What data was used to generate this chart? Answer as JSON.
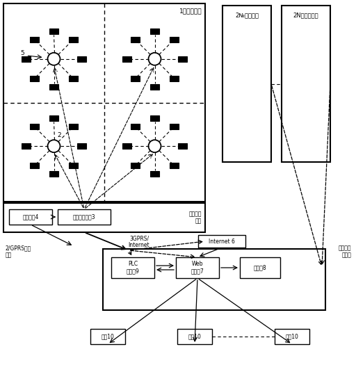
{
  "pond_label": "1号养殖池塘",
  "pond2_label": "2№养殖池塘",
  "pond3_label": "2N号养殖池塘",
  "field_ctrl_label": "现场控制\n中心",
  "field_ctrl_node": "检测控制节点3",
  "field_alert": "现场报警4",
  "gprs_label": "2/GPRS网络\n基站",
  "net_label": "3GPRS/\nInternet",
  "internet_label": "Internet 6",
  "remote_label": "远程控制\n中心室",
  "plc_label": "PLC\n监控犯9",
  "web_label": "Web\n服务器7",
  "db_label": "数据库8",
  "user1_label": "用戗10",
  "user2_label": "用戗10",
  "user3_label": "用戗10",
  "aerator5_label": "5",
  "aerator2_label": "2",
  "bg_color": "#ffffff"
}
